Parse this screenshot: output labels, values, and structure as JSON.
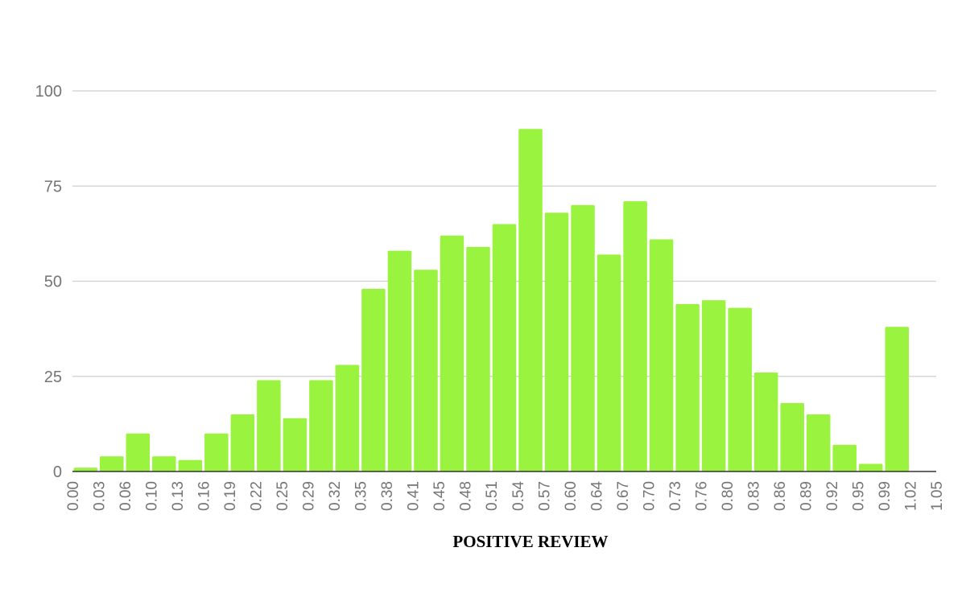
{
  "chart_data": {
    "type": "bar",
    "title": "",
    "xlabel": "POSITIVE REVIEW",
    "ylabel": "",
    "bar_color": "#9af33f",
    "grid": true,
    "ylim": [
      0,
      100
    ],
    "y_ticks": [
      "0",
      "25",
      "50",
      "75",
      "100"
    ],
    "x_ticks": [
      "0.00",
      "0.03",
      "0.06",
      "0.10",
      "0.13",
      "0.16",
      "0.19",
      "0.22",
      "0.25",
      "0.29",
      "0.32",
      "0.35",
      "0.38",
      "0.41",
      "0.45",
      "0.48",
      "0.51",
      "0.54",
      "0.57",
      "0.60",
      "0.64",
      "0.67",
      "0.70",
      "0.73",
      "0.76",
      "0.80",
      "0.83",
      "0.86",
      "0.89",
      "0.92",
      "0.95",
      "0.99",
      "1.02",
      "1.05"
    ],
    "values": [
      1,
      4,
      10,
      4,
      3,
      10,
      15,
      24,
      14,
      24,
      28,
      48,
      58,
      53,
      62,
      59,
      65,
      90,
      68,
      70,
      57,
      71,
      61,
      44,
      45,
      43,
      26,
      18,
      15,
      7,
      2,
      38,
      0
    ]
  }
}
